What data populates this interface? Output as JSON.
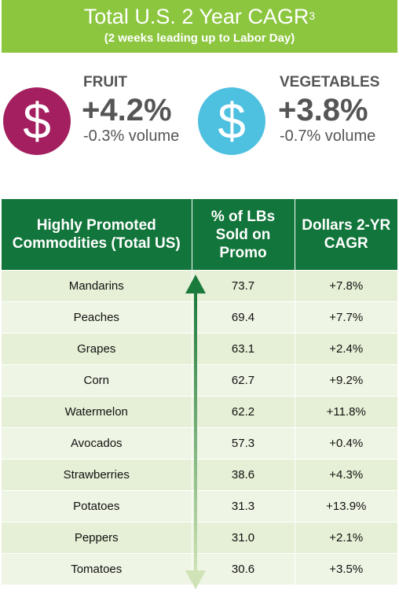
{
  "banner": {
    "title": "Total U.S. 2 Year CAGR",
    "footnote": "3",
    "subtitle": "(2 weeks leading up to Labor Day)"
  },
  "fruit": {
    "label": "FRUIT",
    "change": "+4.2%",
    "volume": "-0.3% volume",
    "icon": "dollar-icon",
    "color": "#a31f5f"
  },
  "vegetables": {
    "label": "VEGETABLES",
    "change": "+3.8%",
    "volume": "-0.7% volume",
    "icon": "dollar-icon",
    "color": "#4ec0e0"
  },
  "icon_glyph": "$",
  "table": {
    "headers": [
      "Highly Promoted Commodities (Total US)",
      "% of LBs Sold on Promo",
      "Dollars 2-YR CAGR"
    ],
    "rows": [
      [
        "Mandarins",
        "73.7",
        "+7.8%"
      ],
      [
        "Peaches",
        "69.4",
        "+7.7%"
      ],
      [
        "Grapes",
        "63.1",
        "+2.4%"
      ],
      [
        "Corn",
        "62.7",
        "+9.2%"
      ],
      [
        "Watermelon",
        "62.2",
        "+11.8%"
      ],
      [
        "Avocados",
        "57.3",
        "+0.4%"
      ],
      [
        "Strawberries",
        "38.6",
        "+4.3%"
      ],
      [
        "Potatoes",
        "31.3",
        "+13.9%"
      ],
      [
        "Peppers",
        "31.0",
        "+2.1%"
      ],
      [
        "Tomatoes",
        "30.6",
        "+3.5%"
      ]
    ]
  },
  "colors": {
    "header_green": "#12753b",
    "banner_green": "#8cc63f",
    "row_light": "#e6f0d6"
  }
}
